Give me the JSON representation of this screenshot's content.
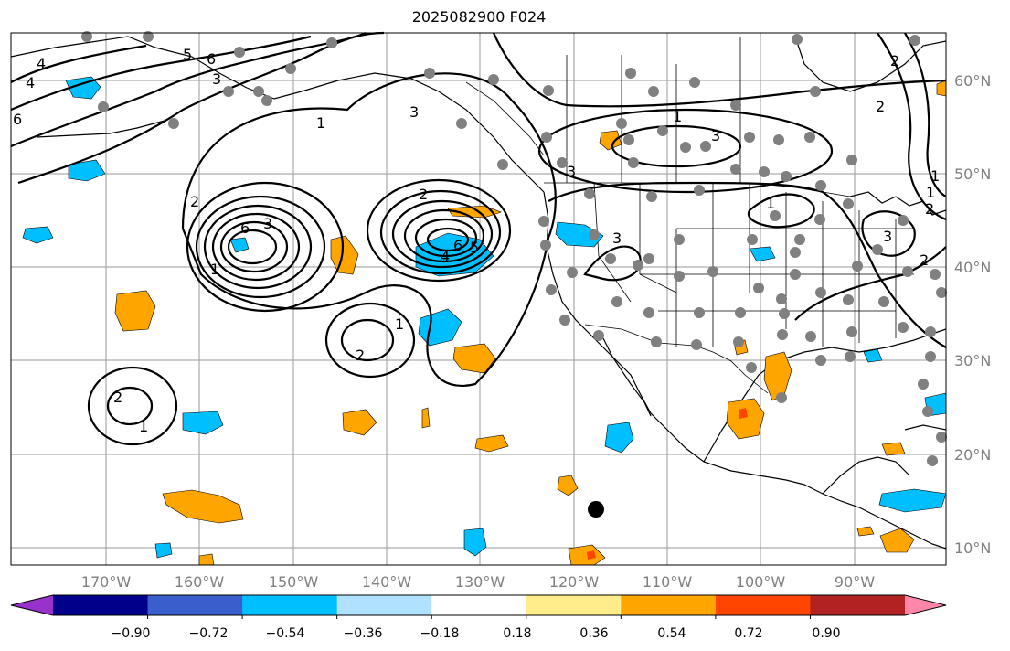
{
  "title": "2025082900 F024",
  "lat_labels": [
    "60°N",
    "50°N",
    "40°N",
    "30°N",
    "20°N",
    "10°N"
  ],
  "lon_labels": [
    "170°W",
    "160°W",
    "150°W",
    "140°W",
    "130°W",
    "120°W",
    "110°W",
    "100°W",
    "90°W"
  ],
  "colorbar": {
    "tick_labels": [
      "−0.90",
      "−0.72",
      "−0.54",
      "−0.36",
      "−0.18",
      "0.18",
      "0.36",
      "0.54",
      "0.72",
      "0.90"
    ],
    "colors": [
      "#9932CC",
      "#00008B",
      "#3A5FCD",
      "#00BFFF",
      "#B0E2FF",
      "#FFFFFF",
      "#FFEC8B",
      "#FFA500",
      "#FF4500",
      "#B22222",
      "#FF88AA"
    ]
  },
  "contour_labels": [
    "4",
    "4",
    "6",
    "5",
    "6",
    "3",
    "1",
    "3",
    "2",
    "6",
    "3",
    "1",
    "2",
    "6",
    "5",
    "4",
    "3",
    "2",
    "2",
    "1",
    "1",
    "3",
    "1",
    "3",
    "2",
    "1",
    "2",
    "1",
    "3",
    "2",
    "1",
    "2"
  ],
  "colors": {
    "land": "#ffffff",
    "grid": "#808080",
    "station": "#808080",
    "marker": "#000000",
    "negative_fill": "#00BFFF",
    "positive_fill": "#FFA500"
  }
}
